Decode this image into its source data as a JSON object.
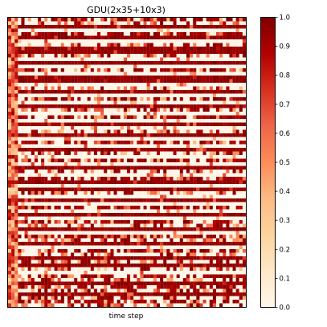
{
  "chart_data": {
    "type": "heatmap",
    "title": "GDU(2x35+10x3)",
    "xlabel": "time step",
    "ylabel": "",
    "x_ticks_shown": false,
    "y_ticks_shown": false,
    "n_rows": 80,
    "n_cols": 72,
    "colormap": "OrRd",
    "value_range": [
      0.0,
      1.0
    ],
    "colorbar_ticks": [
      "0.0",
      "0.1",
      "0.2",
      "0.3",
      "0.4",
      "0.5",
      "0.6",
      "0.7",
      "0.8",
      "0.9",
      "1.0"
    ],
    "colormap_stops": [
      {
        "v": 0.0,
        "color": "#fff7ec"
      },
      {
        "v": 0.125,
        "color": "#fee8c8"
      },
      {
        "v": 0.25,
        "color": "#fdd49e"
      },
      {
        "v": 0.375,
        "color": "#fdbb84"
      },
      {
        "v": 0.5,
        "color": "#fc8d59"
      },
      {
        "v": 0.625,
        "color": "#ef6548"
      },
      {
        "v": 0.75,
        "color": "#d7301f"
      },
      {
        "v": 0.875,
        "color": "#b30000"
      },
      {
        "v": 1.0,
        "color": "#7f0000"
      }
    ],
    "row_profiles": [
      "mixed-hi",
      "mixed-lo",
      "high",
      "low",
      "mixed-hi",
      "high",
      "low",
      "mixed-lo",
      "high",
      "high",
      "mixed-lo",
      "low",
      "high",
      "low",
      "mixed-hi",
      "low",
      "high",
      "high",
      "low",
      "mixed-lo",
      "high",
      "low",
      "mixed-hi",
      "low",
      "high",
      "mixed-lo",
      "low",
      "mixed-hi",
      "low",
      "high",
      "low",
      "mixed-lo",
      "high",
      "low",
      "mixed-hi",
      "low",
      "high",
      "mixed-lo",
      "low",
      "mixed-hi",
      "low",
      "high",
      "mixed-lo",
      "low",
      "mixed-hi",
      "high",
      "low",
      "high",
      "mixed-lo",
      "low",
      "high",
      "low",
      "mixed-hi",
      "low",
      "high",
      "low",
      "mixed-hi",
      "mixed-lo",
      "high",
      "low",
      "mixed-hi",
      "mixed-lo",
      "high",
      "low",
      "mixed-hi",
      "mixed-lo",
      "high",
      "mixed-lo",
      "high",
      "mixed-lo",
      "low",
      "mixed-hi",
      "mixed-lo",
      "high",
      "mixed-hi",
      "mixed-lo",
      "high",
      "mixed-lo",
      "mixed-hi",
      "mixed-lo"
    ],
    "first_columns_mixed": 3,
    "seed": 1729
  }
}
